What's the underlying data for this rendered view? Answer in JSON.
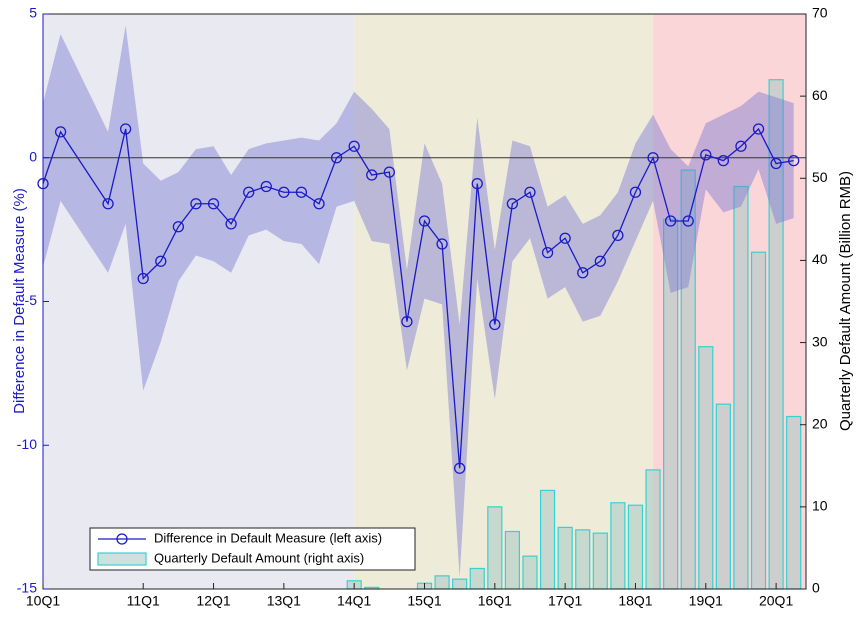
{
  "chart_data": {
    "type": "line",
    "x": [
      -1.7,
      -0.7,
      2,
      3,
      4,
      5,
      6,
      7,
      8,
      9,
      10,
      11,
      12,
      13,
      14,
      15,
      16,
      17,
      18,
      19,
      20,
      21,
      22,
      23,
      24,
      25,
      26,
      27,
      28,
      29,
      30,
      31,
      32,
      33,
      34,
      35,
      36,
      37,
      38,
      39,
      40,
      41
    ],
    "xlim": [
      -1.7,
      41.7
    ],
    "xticks": [
      {
        "value": -1.7,
        "label": "10Q1"
      },
      {
        "value": 4,
        "label": "11Q1"
      },
      {
        "value": 8,
        "label": "12Q1"
      },
      {
        "value": 12,
        "label": "13Q1"
      },
      {
        "value": 16,
        "label": "14Q1"
      },
      {
        "value": 20,
        "label": "15Q1"
      },
      {
        "value": 24,
        "label": "16Q1"
      },
      {
        "value": 28,
        "label": "17Q1"
      },
      {
        "value": 32,
        "label": "18Q1"
      },
      {
        "value": 36,
        "label": "19Q1"
      },
      {
        "value": 40,
        "label": "20Q1"
      }
    ],
    "ylim": [
      -15,
      5
    ],
    "yticks": [
      -15,
      -10,
      -5,
      0,
      5
    ],
    "y2lim": [
      0,
      70
    ],
    "y2ticks": [
      0,
      10,
      20,
      30,
      40,
      50,
      60,
      70
    ],
    "ylabel": "Difference in Default Measure (%)",
    "y2label": "Quarterly Default Amount (Billion RMB)",
    "reference_line": 0,
    "regions": [
      {
        "start": -1.7,
        "end": 16,
        "color": "#e9e9f1"
      },
      {
        "start": 16,
        "end": 33,
        "color": "#eeecd9"
      },
      {
        "start": 33,
        "end": 41.7,
        "color": "#fbd6d9"
      }
    ],
    "band": {
      "color": "#7a7ad2",
      "upper": [
        1.9,
        4.3,
        0.9,
        4.6,
        -0.2,
        -0.8,
        -0.5,
        0.3,
        0.4,
        -0.6,
        0.3,
        0.5,
        0.6,
        0.7,
        0.6,
        1.2,
        2.3,
        1.7,
        1.0,
        -3.9,
        0.5,
        -0.9,
        -5.8,
        1.4,
        -3.2,
        0.6,
        0.4,
        -1.7,
        -1.3,
        -2.3,
        -2.0,
        -1.2,
        0.5,
        1.5,
        0.3,
        -0.3,
        1.2,
        1.5,
        1.8,
        2.3,
        2.1,
        1.9
      ],
      "lower": [
        -3.8,
        -1.5,
        -4.0,
        -2.3,
        -8.1,
        -6.4,
        -4.3,
        -3.4,
        -3.6,
        -4.0,
        -2.7,
        -2.5,
        -2.9,
        -3.0,
        -3.7,
        -1.7,
        -1.5,
        -2.9,
        -3.0,
        -7.4,
        -4.9,
        -5.1,
        -14.6,
        -4.2,
        -8.4,
        -3.6,
        -2.8,
        -4.9,
        -4.5,
        -5.7,
        -5.5,
        -4.3,
        -2.9,
        -1.5,
        -4.7,
        -4.5,
        -1.1,
        -1.9,
        -1.7,
        -0.4,
        -2.3,
        -2.1
      ]
    },
    "series": [
      {
        "name": "Difference in Default Measure (left axis)",
        "type": "line",
        "color": "#1a1ac8",
        "values": [
          -0.9,
          0.9,
          -1.6,
          1.0,
          -4.2,
          -3.6,
          -2.4,
          -1.6,
          -1.6,
          -2.3,
          -1.2,
          -1.0,
          -1.2,
          -1.2,
          -1.6,
          0,
          0.4,
          -0.6,
          -0.5,
          -5.7,
          -2.2,
          -3.0,
          -10.8,
          -0.9,
          -5.8,
          -1.6,
          -1.2,
          -3.3,
          -2.8,
          -4.0,
          -3.6,
          -2.7,
          -1.2,
          0,
          -2.2,
          -2.2,
          0.1,
          -0.1,
          0.4,
          1.0,
          -0.2,
          -0.1
        ]
      },
      {
        "name": "Quarterly Default Amount (right axis)",
        "type": "bar",
        "axis": "y2",
        "color": "#35d2d2",
        "fill": "#a8c8c4",
        "values": [
          null,
          null,
          null,
          null,
          null,
          null,
          null,
          null,
          null,
          null,
          null,
          null,
          null,
          null,
          null,
          null,
          1.0,
          0.2,
          null,
          null,
          0.7,
          1.6,
          1.2,
          2.5,
          10,
          7,
          4,
          12,
          7.5,
          7.2,
          6.8,
          10.5,
          10.2,
          14.5,
          45,
          51,
          29.5,
          22.5,
          49,
          41,
          62,
          21
        ]
      }
    ],
    "legend": "lower left"
  }
}
